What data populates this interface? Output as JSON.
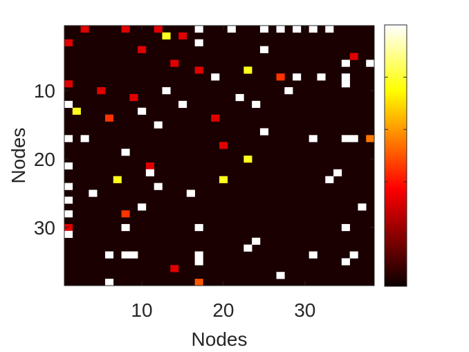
{
  "chart_data": {
    "type": "heatmap",
    "xlabel": "Nodes",
    "ylabel": "Nodes",
    "n": 38,
    "x_ticks": [
      10,
      20,
      30
    ],
    "y_ticks": [
      10,
      20,
      30
    ],
    "xlim": [
      0.5,
      38.5
    ],
    "ylim": [
      0.5,
      38.5
    ],
    "y_direction": "reverse",
    "grid": false,
    "colorbar": {
      "location": "right",
      "colormap": "hot",
      "tick_labels_visible": false
    },
    "background_color": "#1a0000",
    "cells": [
      {
        "r": 1,
        "c": 3,
        "v": 0.33
      },
      {
        "r": 1,
        "c": 8,
        "v": 0.33
      },
      {
        "r": 1,
        "c": 12,
        "v": 0.33
      },
      {
        "r": 1,
        "c": 17,
        "v": 1.0
      },
      {
        "r": 1,
        "c": 21,
        "v": 1.0
      },
      {
        "r": 1,
        "c": 25,
        "v": 1.0
      },
      {
        "r": 1,
        "c": 27,
        "v": 1.0
      },
      {
        "r": 1,
        "c": 29,
        "v": 1.0
      },
      {
        "r": 1,
        "c": 31,
        "v": 1.0
      },
      {
        "r": 1,
        "c": 33,
        "v": 1.0
      },
      {
        "r": 2,
        "c": 13,
        "v": 0.78
      },
      {
        "r": 2,
        "c": 15,
        "v": 0.33
      },
      {
        "r": 3,
        "c": 17,
        "v": 1.0
      },
      {
        "r": 3,
        "c": 1,
        "v": 0.33
      },
      {
        "r": 4,
        "c": 25,
        "v": 1.0
      },
      {
        "r": 4,
        "c": 10,
        "v": 0.33
      },
      {
        "r": 5,
        "c": 36,
        "v": 0.33
      },
      {
        "r": 6,
        "c": 35,
        "v": 1.0
      },
      {
        "r": 6,
        "c": 38,
        "v": 1.0
      },
      {
        "r": 6,
        "c": 14,
        "v": 0.33
      },
      {
        "r": 7,
        "c": 23,
        "v": 0.78
      },
      {
        "r": 7,
        "c": 17,
        "v": 0.33
      },
      {
        "r": 8,
        "c": 19,
        "v": 1.0
      },
      {
        "r": 8,
        "c": 29,
        "v": 1.0
      },
      {
        "r": 8,
        "c": 32,
        "v": 1.0
      },
      {
        "r": 8,
        "c": 35,
        "v": 1.0
      },
      {
        "r": 8,
        "c": 27,
        "v": 0.45
      },
      {
        "r": 9,
        "c": 35,
        "v": 1.0
      },
      {
        "r": 9,
        "c": 1,
        "v": 0.33
      },
      {
        "r": 10,
        "c": 13,
        "v": 1.0
      },
      {
        "r": 10,
        "c": 28,
        "v": 1.0
      },
      {
        "r": 10,
        "c": 5,
        "v": 0.33
      },
      {
        "r": 11,
        "c": 22,
        "v": 1.0
      },
      {
        "r": 11,
        "c": 9,
        "v": 0.33
      },
      {
        "r": 12,
        "c": 1,
        "v": 1.0
      },
      {
        "r": 12,
        "c": 15,
        "v": 1.0
      },
      {
        "r": 12,
        "c": 24,
        "v": 1.0
      },
      {
        "r": 13,
        "c": 2,
        "v": 0.78
      },
      {
        "r": 13,
        "c": 10,
        "v": 1.0
      },
      {
        "r": 14,
        "c": 6,
        "v": 0.45
      },
      {
        "r": 14,
        "c": 19,
        "v": 0.33
      },
      {
        "r": 15,
        "c": 12,
        "v": 1.0
      },
      {
        "r": 16,
        "c": 25,
        "v": 1.0
      },
      {
        "r": 17,
        "c": 1,
        "v": 1.0
      },
      {
        "r": 17,
        "c": 3,
        "v": 1.0
      },
      {
        "r": 17,
        "c": 31,
        "v": 1.0
      },
      {
        "r": 17,
        "c": 35,
        "v": 1.0
      },
      {
        "r": 17,
        "c": 36,
        "v": 1.0
      },
      {
        "r": 17,
        "c": 38,
        "v": 0.55
      },
      {
        "r": 18,
        "c": 20,
        "v": 0.33
      },
      {
        "r": 19,
        "c": 8,
        "v": 1.0
      },
      {
        "r": 20,
        "c": 23,
        "v": 0.78
      },
      {
        "r": 21,
        "c": 1,
        "v": 1.0
      },
      {
        "r": 21,
        "c": 11,
        "v": 0.33
      },
      {
        "r": 22,
        "c": 11,
        "v": 1.0
      },
      {
        "r": 22,
        "c": 34,
        "v": 1.0
      },
      {
        "r": 23,
        "c": 7,
        "v": 0.78
      },
      {
        "r": 23,
        "c": 20,
        "v": 0.78
      },
      {
        "r": 23,
        "c": 33,
        "v": 1.0
      },
      {
        "r": 24,
        "c": 1,
        "v": 1.0
      },
      {
        "r": 24,
        "c": 12,
        "v": 1.0
      },
      {
        "r": 25,
        "c": 4,
        "v": 1.0
      },
      {
        "r": 25,
        "c": 16,
        "v": 1.0
      },
      {
        "r": 26,
        "c": 1,
        "v": 1.0
      },
      {
        "r": 27,
        "c": 10,
        "v": 1.0
      },
      {
        "r": 27,
        "c": 37,
        "v": 1.0
      },
      {
        "r": 28,
        "c": 1,
        "v": 1.0
      },
      {
        "r": 28,
        "c": 8,
        "v": 0.45
      },
      {
        "r": 30,
        "c": 1,
        "v": 0.33
      },
      {
        "r": 30,
        "c": 8,
        "v": 1.0
      },
      {
        "r": 30,
        "c": 17,
        "v": 1.0
      },
      {
        "r": 30,
        "c": 35,
        "v": 1.0
      },
      {
        "r": 31,
        "c": 1,
        "v": 1.0
      },
      {
        "r": 32,
        "c": 24,
        "v": 1.0
      },
      {
        "r": 33,
        "c": 23,
        "v": 1.0
      },
      {
        "r": 34,
        "c": 6,
        "v": 1.0
      },
      {
        "r": 34,
        "c": 8,
        "v": 1.0
      },
      {
        "r": 34,
        "c": 9,
        "v": 1.0
      },
      {
        "r": 34,
        "c": 17,
        "v": 1.0
      },
      {
        "r": 34,
        "c": 31,
        "v": 1.0
      },
      {
        "r": 34,
        "c": 36,
        "v": 1.0
      },
      {
        "r": 35,
        "c": 17,
        "v": 1.0
      },
      {
        "r": 35,
        "c": 35,
        "v": 1.0
      },
      {
        "r": 36,
        "c": 14,
        "v": 0.33
      },
      {
        "r": 37,
        "c": 27,
        "v": 1.0
      },
      {
        "r": 38,
        "c": 6,
        "v": 1.0
      },
      {
        "r": 38,
        "c": 17,
        "v": 0.5
      }
    ]
  }
}
